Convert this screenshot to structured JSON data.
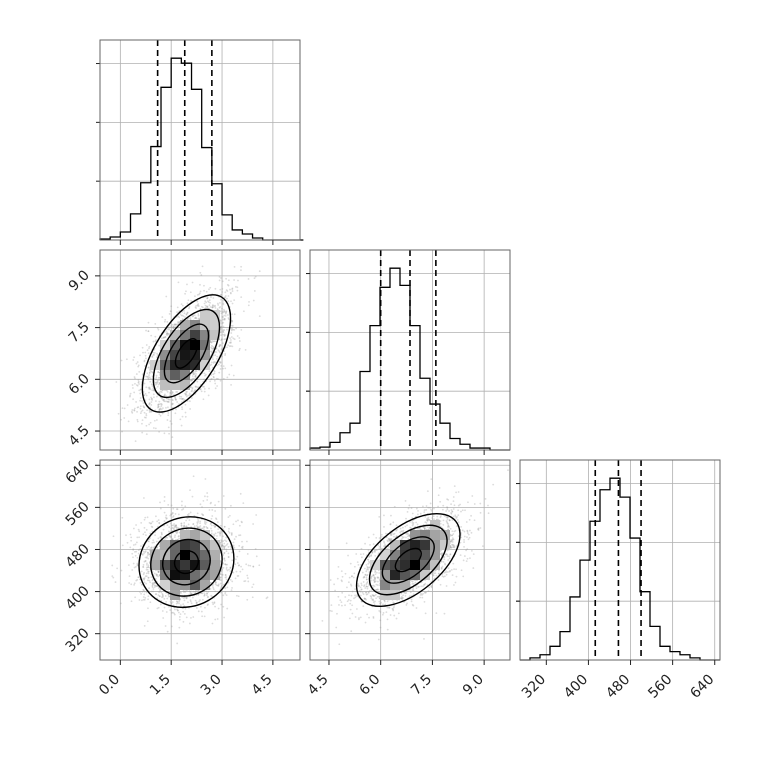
{
  "chart_data": {
    "type": "corner",
    "grid": true,
    "parameters": [
      {
        "xlim": [
          -0.6,
          5.3
        ],
        "ticks": [
          0.0,
          1.5,
          3.0,
          4.5
        ],
        "tick_labels": [
          "0.0",
          "1.5",
          "3.0",
          "4.5"
        ],
        "quantiles": [
          1.1,
          1.9,
          2.7
        ],
        "hist_bins_from": -0.6,
        "hist_bin_width": 0.3,
        "hist_counts": [
          1,
          3,
          8,
          26,
          57,
          93,
          152,
          181,
          176,
          150,
          92,
          56,
          25,
          10,
          6,
          2,
          0,
          0,
          0,
          0
        ]
      },
      {
        "xlim": [
          3.95,
          9.75
        ],
        "ticks": [
          4.5,
          6.0,
          7.5,
          9.0
        ],
        "tick_labels": [
          "4.5",
          "6.0",
          "7.5",
          "9.0"
        ],
        "quantiles": [
          6.0,
          6.85,
          7.6
        ],
        "hist_bins_from": 3.95,
        "hist_bin_width": 0.29,
        "hist_counts": [
          2,
          3,
          8,
          18,
          28,
          82,
          130,
          170,
          190,
          172,
          130,
          75,
          48,
          28,
          12,
          6,
          2,
          2,
          0,
          0
        ]
      },
      {
        "xlim": [
          270,
          650
        ],
        "ticks": [
          320,
          400,
          480,
          560,
          640
        ],
        "tick_labels": [
          "320",
          "400",
          "480",
          "560",
          "640"
        ],
        "quantiles": [
          413,
          457,
          500
        ],
        "hist_bins_from": 270,
        "hist_bin_width": 19,
        "hist_counts": [
          0,
          2,
          5,
          13,
          27,
          60,
          95,
          132,
          162,
          173,
          155,
          116,
          65,
          32,
          13,
          8,
          5,
          2,
          0,
          0
        ]
      }
    ],
    "pairs": [
      {
        "x_param": 0,
        "y_param": 1,
        "center": [
          1.95,
          6.75
        ],
        "sd": [
          0.65,
          0.85
        ],
        "rho": 0.6
      },
      {
        "x_param": 0,
        "y_param": 2,
        "center": [
          1.95,
          456
        ],
        "sd": [
          0.7,
          43
        ],
        "rho": 0.08
      },
      {
        "x_param": 1,
        "y_param": 2,
        "center": [
          6.8,
          460
        ],
        "sd": [
          0.75,
          44
        ],
        "rho": 0.55
      }
    ],
    "contour_levels_sigma": [
      0.5,
      1.0,
      1.5,
      2.0
    ],
    "colors": {
      "hist": "#000000",
      "points": "#9a9a9a",
      "contour": "#000000",
      "grid": "#b0b0b0",
      "frame": "#666666"
    }
  }
}
